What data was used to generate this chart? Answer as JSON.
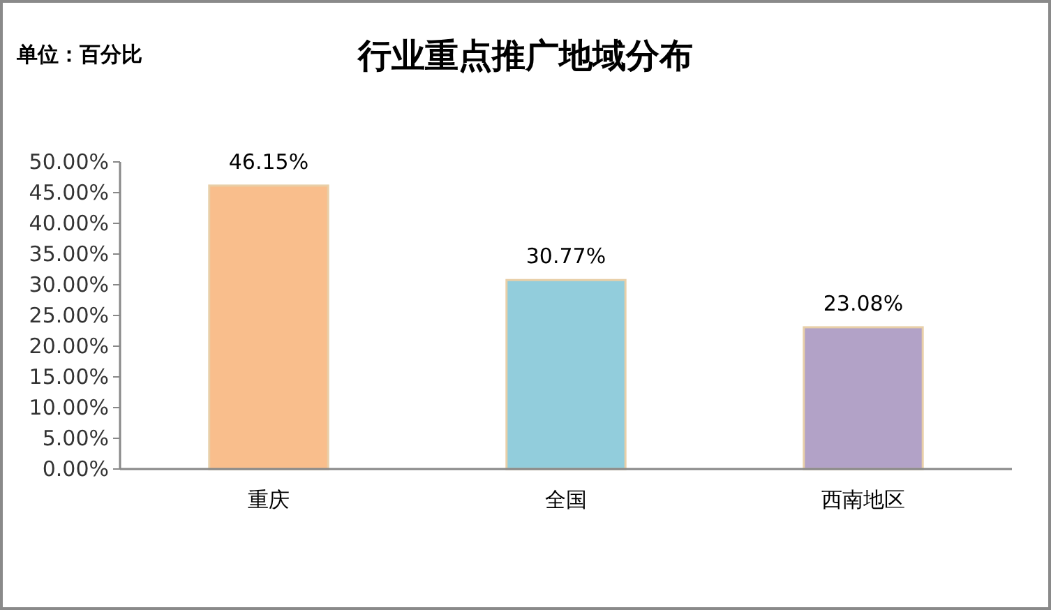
{
  "chart_data": {
    "type": "bar",
    "title": "行业重点推广地域分布",
    "annotations": [
      "单位：百分比"
    ],
    "categories": [
      "重庆",
      "全国",
      "西南地区"
    ],
    "values": [
      46.15,
      30.77,
      23.08
    ],
    "value_labels": [
      "46.15%",
      "30.77%",
      "23.08%"
    ],
    "colors": [
      "#f9be8c",
      "#92cddc",
      "#b2a2c7"
    ],
    "ylim": [
      0,
      50
    ],
    "yticks": [
      {
        "value": 0,
        "label": "0.00%"
      },
      {
        "value": 5,
        "label": "5.00%"
      },
      {
        "value": 10,
        "label": "10.00%"
      },
      {
        "value": 15,
        "label": "15.00%"
      },
      {
        "value": 20,
        "label": "20.00%"
      },
      {
        "value": 25,
        "label": "25.00%"
      },
      {
        "value": 30,
        "label": "30.00%"
      },
      {
        "value": 35,
        "label": "35.00%"
      },
      {
        "value": 40,
        "label": "40.00%"
      },
      {
        "value": 45,
        "label": "45.00%"
      },
      {
        "value": 50,
        "label": "50.00%"
      }
    ]
  }
}
